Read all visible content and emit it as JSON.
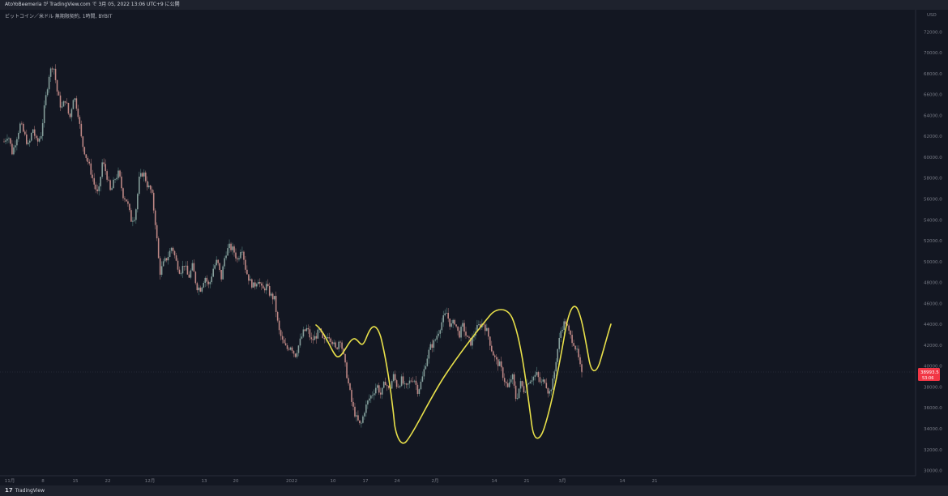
{
  "header": {
    "caption": "AtoYoBeemeria が TradingView.com で 3月 05, 2022 13:06 UTC+9 に公開"
  },
  "symbol_label": "ビットコイン／米ドル 無期限契約, 1時間, BYBIT",
  "footer": {
    "brand_mark": "17",
    "brand_name": "TradingView"
  },
  "chart_data": {
    "type": "candlestick",
    "currency": "USD",
    "y_ticks": [
      72000,
      70000,
      68000,
      66000,
      64000,
      62000,
      60000,
      58000,
      56000,
      54000,
      52000,
      50000,
      48000,
      46000,
      44000,
      42000,
      40000,
      38000,
      36000,
      34000,
      32000,
      30000
    ],
    "ylim": [
      29500,
      73500
    ],
    "x_ticks": [
      "11月",
      "8",
      "15",
      "22",
      "12月",
      "13",
      "20",
      "2022",
      "10",
      "17",
      "24",
      "2月",
      "14",
      "21",
      "3月",
      "14",
      "21"
    ],
    "last_price": "38993.5",
    "countdown": "53:06",
    "price_path": [
      [
        0.0,
        61500
      ],
      [
        0.01,
        62200
      ],
      [
        0.02,
        60400
      ],
      [
        0.03,
        61800
      ],
      [
        0.04,
        63200
      ],
      [
        0.05,
        62100
      ],
      [
        0.06,
        61000
      ],
      [
        0.07,
        62800
      ],
      [
        0.08,
        61300
      ],
      [
        0.09,
        62100
      ],
      [
        0.1,
        65200
      ],
      [
        0.11,
        67900
      ],
      [
        0.12,
        69000
      ],
      [
        0.13,
        66200
      ],
      [
        0.14,
        64600
      ],
      [
        0.15,
        65600
      ],
      [
        0.16,
        63600
      ],
      [
        0.17,
        66000
      ],
      [
        0.18,
        64400
      ],
      [
        0.19,
        61400
      ],
      [
        0.2,
        60100
      ],
      [
        0.21,
        58900
      ],
      [
        0.22,
        57400
      ],
      [
        0.23,
        56300
      ],
      [
        0.24,
        59600
      ],
      [
        0.25,
        58400
      ],
      [
        0.26,
        56600
      ],
      [
        0.27,
        57900
      ],
      [
        0.28,
        58500
      ],
      [
        0.29,
        56400
      ],
      [
        0.3,
        55800
      ],
      [
        0.31,
        54000
      ],
      [
        0.32,
        54400
      ],
      [
        0.33,
        57900
      ],
      [
        0.34,
        58600
      ],
      [
        0.35,
        57300
      ],
      [
        0.36,
        56700
      ],
      [
        0.37,
        53500
      ],
      [
        0.38,
        48900
      ],
      [
        0.39,
        49900
      ],
      [
        0.4,
        50500
      ],
      [
        0.41,
        51500
      ],
      [
        0.42,
        50000
      ],
      [
        0.43,
        49000
      ],
      [
        0.44,
        49800
      ],
      [
        0.45,
        48400
      ],
      [
        0.46,
        49600
      ],
      [
        0.47,
        47600
      ],
      [
        0.48,
        47400
      ],
      [
        0.49,
        48600
      ],
      [
        0.5,
        47600
      ],
      [
        0.51,
        49300
      ],
      [
        0.52,
        50100
      ],
      [
        0.53,
        48400
      ],
      [
        0.54,
        50800
      ],
      [
        0.55,
        51400
      ],
      [
        0.56,
        51100
      ],
      [
        0.57,
        50100
      ],
      [
        0.58,
        51600
      ],
      [
        0.59,
        49200
      ],
      [
        0.6,
        48100
      ],
      [
        0.61,
        47600
      ],
      [
        0.62,
        48400
      ],
      [
        0.63,
        47200
      ],
      [
        0.64,
        47700
      ],
      [
        0.65,
        46800
      ],
      [
        0.66,
        46400
      ],
      [
        0.67,
        43500
      ],
      [
        0.68,
        42300
      ],
      [
        0.69,
        41600
      ],
      [
        0.7,
        42000
      ],
      [
        0.71,
        41000
      ],
      [
        0.72,
        42100
      ],
      [
        0.73,
        43200
      ],
      [
        0.74,
        43600
      ],
      [
        0.75,
        42400
      ],
      [
        0.76,
        42800
      ],
      [
        0.77,
        43400
      ],
      [
        0.78,
        42200
      ],
      [
        0.79,
        43100
      ],
      [
        0.8,
        42500
      ],
      [
        0.81,
        41500
      ],
      [
        0.82,
        42800
      ],
      [
        0.83,
        40600
      ],
      [
        0.84,
        38400
      ],
      [
        0.85,
        36200
      ],
      [
        0.86,
        35000
      ],
      [
        0.87,
        34200
      ],
      [
        0.88,
        35800
      ],
      [
        0.89,
        36800
      ],
      [
        0.9,
        37400
      ],
      [
        0.91,
        38200
      ],
      [
        0.92,
        37200
      ],
      [
        0.93,
        38600
      ],
      [
        0.94,
        37600
      ],
      [
        0.95,
        39100
      ],
      [
        0.96,
        38000
      ],
      [
        0.97,
        38700
      ],
      [
        0.98,
        37800
      ],
      [
        0.99,
        38500
      ],
      [
        1.0,
        38900
      ],
      [
        1.01,
        37600
      ],
      [
        1.02,
        38700
      ],
      [
        1.03,
        40500
      ],
      [
        1.04,
        41800
      ],
      [
        1.05,
        42300
      ],
      [
        1.06,
        43300
      ],
      [
        1.07,
        44400
      ],
      [
        1.08,
        45100
      ],
      [
        1.09,
        43800
      ],
      [
        1.1,
        44300
      ],
      [
        1.11,
        42900
      ],
      [
        1.12,
        43900
      ],
      [
        1.13,
        42600
      ],
      [
        1.14,
        42200
      ],
      [
        1.15,
        43400
      ],
      [
        1.16,
        43900
      ],
      [
        1.17,
        44100
      ],
      [
        1.18,
        43200
      ],
      [
        1.19,
        41600
      ],
      [
        1.2,
        40500
      ],
      [
        1.21,
        40100
      ],
      [
        1.22,
        38800
      ],
      [
        1.23,
        37800
      ],
      [
        1.24,
        39200
      ],
      [
        1.25,
        36700
      ],
      [
        1.26,
        38400
      ],
      [
        1.27,
        37600
      ],
      [
        1.28,
        38600
      ],
      [
        1.29,
        38900
      ],
      [
        1.3,
        39200
      ],
      [
        1.31,
        38300
      ],
      [
        1.32,
        38700
      ],
      [
        1.33,
        37300
      ],
      [
        1.34,
        38600
      ],
      [
        1.35,
        41400
      ],
      [
        1.36,
        43600
      ],
      [
        1.37,
        44300
      ],
      [
        1.38,
        43000
      ],
      [
        1.39,
        42300
      ],
      [
        1.4,
        41100
      ],
      [
        1.41,
        39100
      ]
    ]
  }
}
